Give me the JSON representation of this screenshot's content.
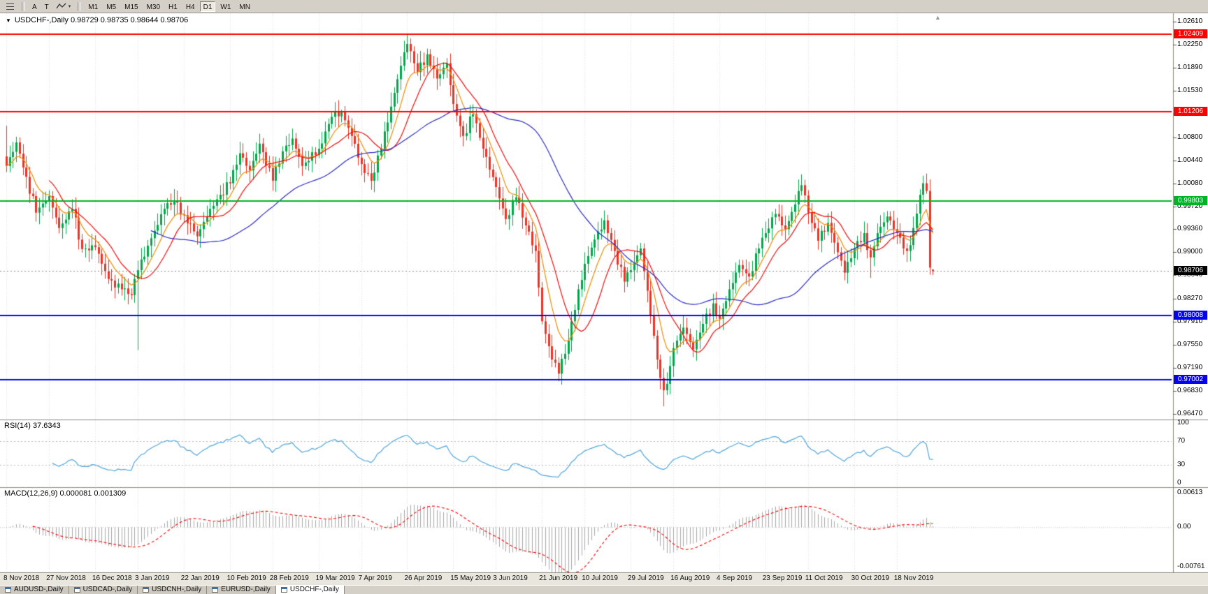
{
  "window": {
    "title": "USDCHF-,Daily"
  },
  "toolbar": {
    "a_button": "A",
    "t_button": "T",
    "timeframes": [
      "M1",
      "M5",
      "M15",
      "M30",
      "H1",
      "H4",
      "D1",
      "W1",
      "MN"
    ],
    "active_timeframe": "D1"
  },
  "chart": {
    "quote_line": "USDCHF-,Daily 0.98729 0.98735 0.98644 0.98706"
  },
  "tabs": {
    "items": [
      "AUDUSD-,Daily",
      "USDCAD-,Daily",
      "USDCNH-,Daily",
      "EURUSD-,Daily",
      "USDCHF-,Daily"
    ],
    "active": "USDCHF-,Daily"
  },
  "chart_data": {
    "type": "candlestick",
    "symbol": "USDCHF-",
    "timeframe": "Daily",
    "ohlc_quote": {
      "open": "0.98729",
      "high": "0.98735",
      "low": "0.98644",
      "close": "0.98706"
    },
    "price_axis_ticks": [
      "1.02610",
      "1.02250",
      "1.01890",
      "1.01530",
      "1.01170",
      "1.00800",
      "1.00440",
      "1.00080",
      "0.99720",
      "0.99360",
      "0.99000",
      "0.98640",
      "0.98270",
      "0.97910",
      "0.97550",
      "0.97190",
      "0.96830",
      "0.96470"
    ],
    "horizontal_lines": [
      {
        "value": 1.02409,
        "label": "1.02409",
        "color": "#FE0000",
        "type": "resistance"
      },
      {
        "value": 1.01206,
        "label": "1.01206",
        "color": "#FE0000",
        "type": "resistance"
      },
      {
        "value": 0.99803,
        "label": "0.99803",
        "color": "#00B226",
        "type": "level"
      },
      {
        "value": 0.98008,
        "label": "0.98008",
        "color": "#0202F2",
        "type": "support"
      },
      {
        "value": 0.97002,
        "label": "0.97002",
        "color": "#0202F2",
        "type": "support"
      }
    ],
    "current_price": {
      "value": 0.98706,
      "label": "0.98706",
      "badge_color": "#000000"
    },
    "grid_color": "#DCDCDC",
    "date_labels": [
      {
        "index": 0,
        "label": "8 Nov 2018"
      },
      {
        "index": 13,
        "label": "27 Nov 2018"
      },
      {
        "index": 27,
        "label": "16 Dec 2018"
      },
      {
        "index": 40,
        "label": "3 Jan 2019"
      },
      {
        "index": 54,
        "label": "22 Jan 2019"
      },
      {
        "index": 68,
        "label": "10 Feb 2019"
      },
      {
        "index": 81,
        "label": "28 Feb 2019"
      },
      {
        "index": 95,
        "label": "19 Mar 2019"
      },
      {
        "index": 108,
        "label": "7 Apr 2019"
      },
      {
        "index": 122,
        "label": "26 Apr 2019"
      },
      {
        "index": 136,
        "label": "15 May 2019"
      },
      {
        "index": 149,
        "label": "3 Jun 2019"
      },
      {
        "index": 163,
        "label": "21 Jun 2019"
      },
      {
        "index": 176,
        "label": "10 Jul 2019"
      },
      {
        "index": 190,
        "label": "29 Jul 2019"
      },
      {
        "index": 203,
        "label": "16 Aug 2019"
      },
      {
        "index": 217,
        "label": "4 Sep 2019"
      },
      {
        "index": 231,
        "label": "23 Sep 2019"
      },
      {
        "index": 244,
        "label": "11 Oct 2019"
      },
      {
        "index": 258,
        "label": "30 Oct 2019"
      },
      {
        "index": 271,
        "label": "18 Nov 2019"
      }
    ],
    "candles": {
      "count": 283,
      "up_color": "#00A84A",
      "down_color": "#EA3428",
      "anchors": [
        [
          0,
          1.0035
        ],
        [
          3,
          1.0072
        ],
        [
          6,
          1.0018
        ],
        [
          9,
          0.9962
        ],
        [
          13,
          0.9988
        ],
        [
          16,
          0.9938
        ],
        [
          20,
          0.9968
        ],
        [
          23,
          0.9905
        ],
        [
          27,
          0.9908
        ],
        [
          31,
          0.9858
        ],
        [
          35,
          0.9842
        ],
        [
          38,
          0.9833
        ],
        [
          40,
          0.9872
        ],
        [
          44,
          0.9922
        ],
        [
          48,
          0.9968
        ],
        [
          51,
          0.9981
        ],
        [
          54,
          0.9958
        ],
        [
          58,
          0.9925
        ],
        [
          62,
          0.9968
        ],
        [
          65,
          0.999
        ],
        [
          68,
          1.0008
        ],
        [
          71,
          1.0055
        ],
        [
          74,
          1.0028
        ],
        [
          77,
          1.007
        ],
        [
          81,
          1.0012
        ],
        [
          84,
          1.0058
        ],
        [
          87,
          1.0078
        ],
        [
          90,
          1.0035
        ],
        [
          95,
          1.0062
        ],
        [
          99,
          1.0112
        ],
        [
          102,
          1.012
        ],
        [
          105,
          1.0082
        ],
        [
          108,
          1.0038
        ],
        [
          111,
          1.0012
        ],
        [
          114,
          1.0062
        ],
        [
          117,
          1.0128
        ],
        [
          120,
          1.0192
        ],
        [
          122,
          1.0226
        ],
        [
          125,
          1.0182
        ],
        [
          128,
          1.021
        ],
        [
          131,
          1.0172
        ],
        [
          134,
          1.0196
        ],
        [
          136,
          1.0132
        ],
        [
          139,
          1.0082
        ],
        [
          142,
          1.0116
        ],
        [
          145,
          1.0062
        ],
        [
          149,
          1.0002
        ],
        [
          152,
          0.9952
        ],
        [
          155,
          0.9986
        ],
        [
          158,
          0.9942
        ],
        [
          161,
          0.9902
        ],
        [
          163,
          0.9792
        ],
        [
          166,
          0.9732
        ],
        [
          168,
          0.971
        ],
        [
          171,
          0.9762
        ],
        [
          174,
          0.9842
        ],
        [
          176,
          0.9882
        ],
        [
          179,
          0.992
        ],
        [
          182,
          0.995
        ],
        [
          185,
          0.9902
        ],
        [
          188,
          0.9854
        ],
        [
          190,
          0.9872
        ],
        [
          193,
          0.9906
        ],
        [
          196,
          0.9802
        ],
        [
          198,
          0.9732
        ],
        [
          200,
          0.9684
        ],
        [
          202,
          0.9722
        ],
        [
          203,
          0.975
        ],
        [
          206,
          0.9782
        ],
        [
          209,
          0.9748
        ],
        [
          212,
          0.9788
        ],
        [
          215,
          0.982
        ],
        [
          217,
          0.9796
        ],
        [
          220,
          0.9842
        ],
        [
          223,
          0.988
        ],
        [
          226,
          0.9862
        ],
        [
          229,
          0.9906
        ],
        [
          231,
          0.993
        ],
        [
          234,
          0.996
        ],
        [
          237,
          0.9936
        ],
        [
          240,
          0.9975
        ],
        [
          242,
          1.0005
        ],
        [
          244,
          0.9962
        ],
        [
          247,
          0.9918
        ],
        [
          250,
          0.9946
        ],
        [
          253,
          0.99
        ],
        [
          255,
          0.9868
        ],
        [
          258,
          0.9906
        ],
        [
          261,
          0.993
        ],
        [
          263,
          0.9892
        ],
        [
          265,
          0.993
        ],
        [
          268,
          0.9956
        ],
        [
          271,
          0.993
        ],
        [
          274,
          0.9902
        ],
        [
          276,
          0.9938
        ],
        [
          278,
          0.999
        ],
        [
          279,
          1.0008
        ],
        [
          280,
          0.9996
        ],
        [
          281,
          0.9876
        ],
        [
          282,
          0.98706
        ]
      ],
      "overrides": {
        "0": {
          "high": 1.0098
        },
        "40": {
          "low": 0.9747
        },
        "102": {
          "high": 1.0123
        },
        "117": {
          "high": 1.015
        },
        "122": {
          "high": 1.0242
        },
        "168": {
          "low": 0.9698
        },
        "200": {
          "low": 0.9659
        },
        "242": {
          "high": 1.0022
        },
        "255": {
          "low": 0.9856
        },
        "263": {
          "low": 0.986
        },
        "279": {
          "high": 1.002
        },
        "281": {
          "low": 0.9865
        }
      },
      "last_ohlc": [
        0.98729,
        0.98735,
        0.98644,
        0.98706
      ]
    },
    "moving_averages": [
      {
        "name": "fast",
        "period": 8,
        "method": "ema",
        "color": "#F08C00"
      },
      {
        "name": "medium",
        "period": 14,
        "method": "sma",
        "color": "#F40B0B"
      },
      {
        "name": "slow",
        "period": 45,
        "method": "sma",
        "color": "#2C2CC8"
      }
    ],
    "rsi": {
      "label": "RSI(14) 37.6343",
      "period": 14,
      "value": "37.6343",
      "axis_ticks": [
        "100",
        "70",
        "30",
        "0"
      ],
      "levels": [
        70,
        30
      ],
      "color": "#4FA6DE"
    },
    "macd": {
      "label": "MACD(12,26,9) 0.000081 0.001309",
      "value": "0.000081",
      "signal_value": "0.001309",
      "axis_ticks": [
        "0.00613",
        "0.00",
        "-0.00761"
      ],
      "histogram_color": "#A8A8A8",
      "signal_color": "#FF0000"
    }
  }
}
